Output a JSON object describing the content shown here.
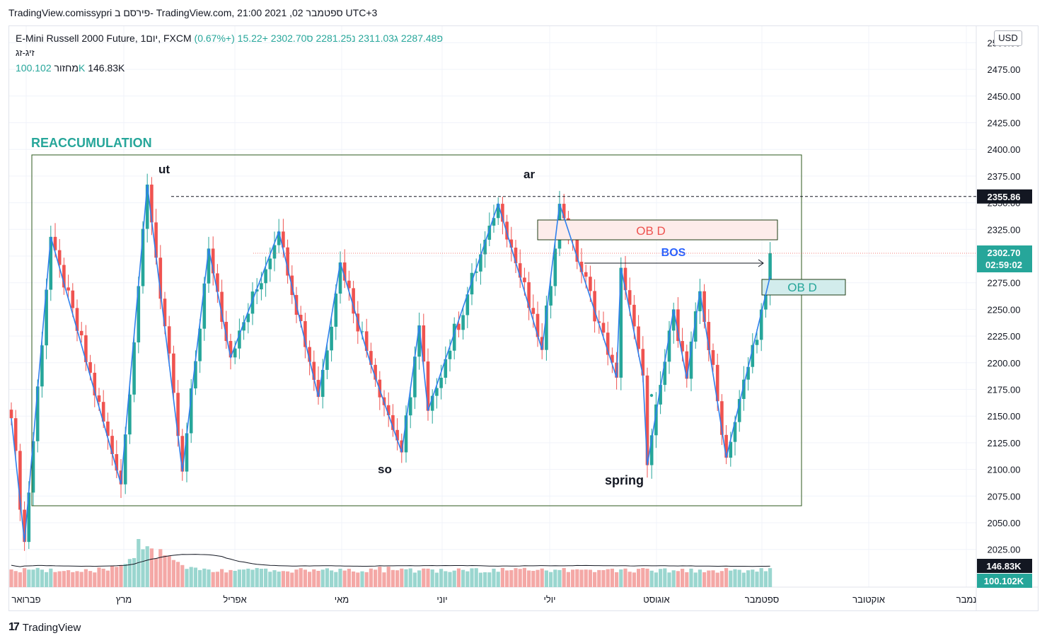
{
  "header": {
    "title": "TradingView.comissypri פירסם ב- TradingView.com, 21:00 2021 ,02 ספטמבר UTC+3"
  },
  "legend": {
    "symbol": "E-Mini Russell 2000 Future, 1יום, FXCM",
    "open": "פ2287.48",
    "high": "ג2311.03",
    "low": "נ2281.25",
    "close": "ס2302.70",
    "change": "+15.22 (+0.67%)",
    "indicator": "זיג-זג",
    "volume_label": "מחזור",
    "volume_value": "100.102K",
    "volume_ma": "146.83K"
  },
  "currency": "USD",
  "branding": {
    "name": "TradingView"
  },
  "chart_data": {
    "type": "candlestick",
    "y_ticks": [
      "2500.00",
      "2475.00",
      "2450.00",
      "2425.00",
      "2400.00",
      "2375.00",
      "2350.00",
      "2325.00",
      "2300.00",
      "2275.00",
      "2250.00",
      "2225.00",
      "2200.00",
      "2175.00",
      "2150.00",
      "2125.00",
      "2100.00",
      "2075.00",
      "2050.00",
      "2025.00"
    ],
    "y_range": [
      2015,
      2512
    ],
    "x_labels": [
      "פברואר",
      "מרץ",
      "אפריל",
      "מאי",
      "יוני",
      "יולי",
      "אוגוסט",
      "ספטמבר",
      "אוקטובר",
      "נמבר"
    ],
    "price_labels": {
      "level": "2355.86",
      "last": "2302.70",
      "countdown": "02:59:02",
      "volume_ma": "146.83K",
      "volume_last": "100.102K"
    },
    "annotations": {
      "title": "REACCUMULATION",
      "ut": "ut",
      "ar": "ar",
      "so": "so",
      "spring": "spring",
      "bos": "BOS",
      "ob_upper": "OB D",
      "ob_lower": "OB D"
    },
    "zigzag_prices": [
      2148,
      2032,
      2318,
      2086,
      2367,
      2098,
      2307,
      2205,
      2323,
      2168,
      2294,
      2198,
      2116,
      2235,
      2155,
      2225,
      2349,
      2212,
      2349,
      2186,
      2289,
      2188,
      2104,
      2250,
      2185,
      2267,
      2111,
      2281
    ],
    "colors": {
      "up": "#26a69a",
      "down": "#ef5350",
      "zigzag": "#2f80ed",
      "box": "#2e5a1c",
      "label": "#26a69a",
      "bos": "#2962ff"
    }
  }
}
